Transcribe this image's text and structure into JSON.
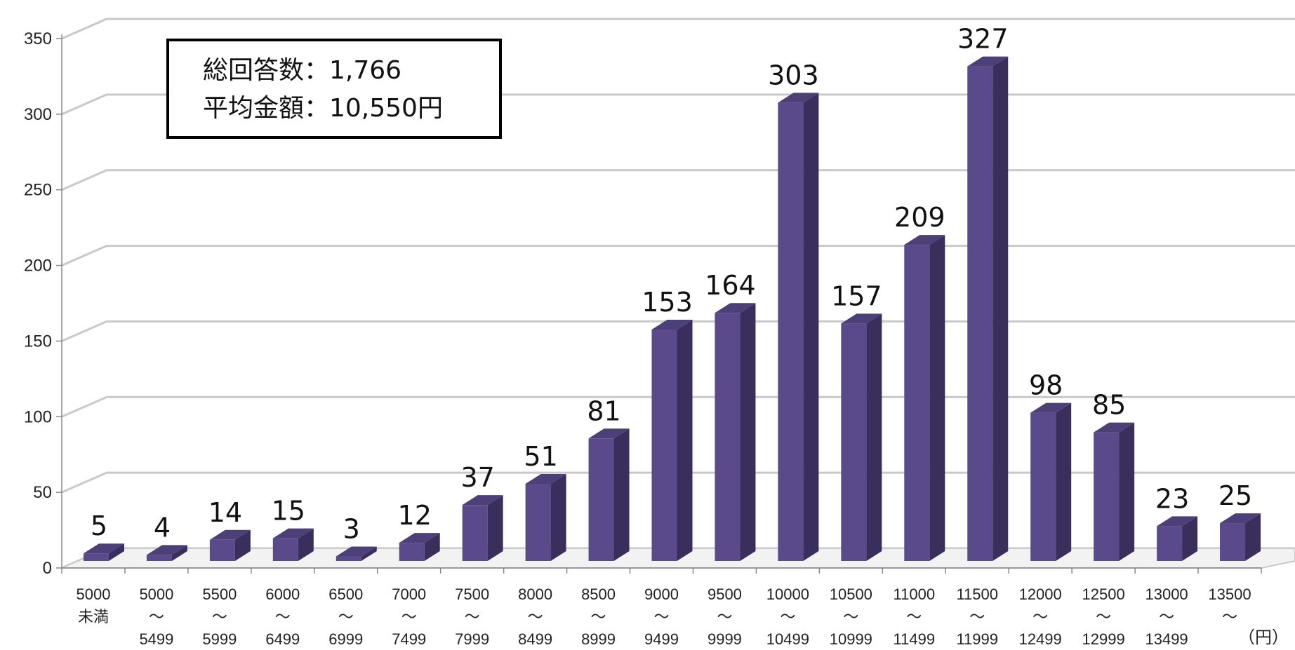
{
  "chart_data": {
    "type": "bar",
    "style": "3d",
    "bar_color": "#5b4a8b",
    "categories": [
      [
        "5000",
        "未満",
        ""
      ],
      [
        "5000",
        "～",
        "5499"
      ],
      [
        "5500",
        "～",
        "5999"
      ],
      [
        "6000",
        "～",
        "6499"
      ],
      [
        "6500",
        "～",
        "6999"
      ],
      [
        "7000",
        "～",
        "7499"
      ],
      [
        "7500",
        "～",
        "7999"
      ],
      [
        "8000",
        "～",
        "8499"
      ],
      [
        "8500",
        "～",
        "8999"
      ],
      [
        "9000",
        "～",
        "9499"
      ],
      [
        "9500",
        "～",
        "9999"
      ],
      [
        "10000",
        "～",
        "10499"
      ],
      [
        "10500",
        "～",
        "10999"
      ],
      [
        "11000",
        "～",
        "11499"
      ],
      [
        "11500",
        "～",
        "11999"
      ],
      [
        "12000",
        "～",
        "12499"
      ],
      [
        "12500",
        "～",
        "12999"
      ],
      [
        "13000",
        "～",
        "13499"
      ],
      [
        "13500",
        "～",
        ""
      ]
    ],
    "values": [
      5,
      4,
      14,
      15,
      3,
      12,
      37,
      51,
      81,
      153,
      164,
      303,
      157,
      209,
      327,
      98,
      85,
      23,
      25
    ],
    "y_ticks": [
      "0",
      "50",
      "100",
      "150",
      "200",
      "250",
      "300",
      "350"
    ],
    "ylim": [
      0,
      350
    ],
    "x_unit_label": "（円）",
    "grid": true
  },
  "info_box": {
    "line1": "総回答数：1,766",
    "line2": "平均金額：10,550円"
  }
}
